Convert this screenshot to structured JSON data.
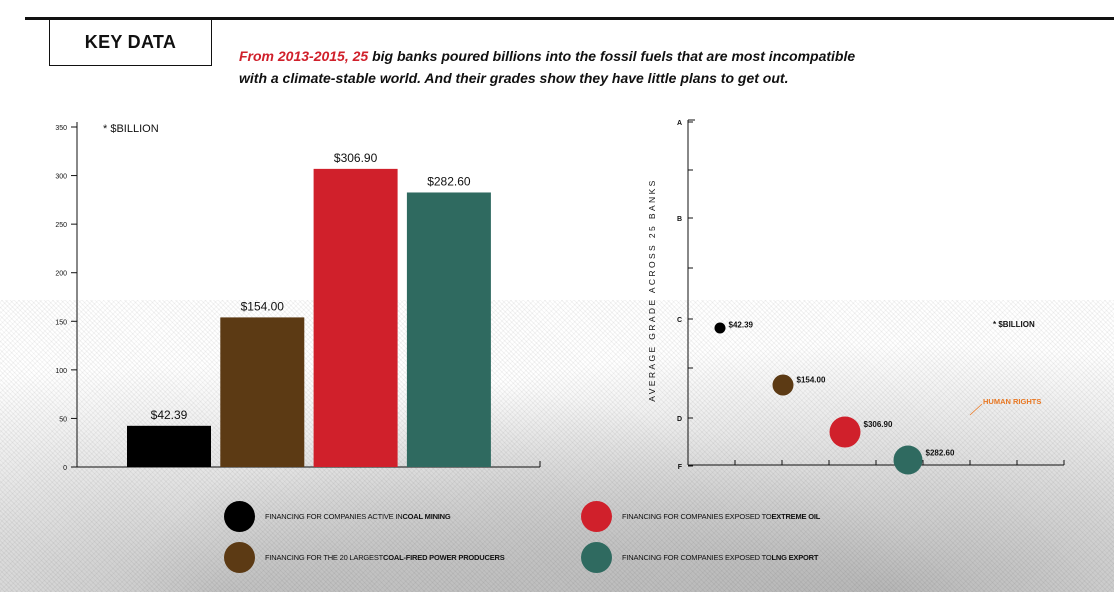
{
  "header": {
    "key_label": "KEY DATA",
    "headline_highlight": "From 2013-2015, 25",
    "headline_rest_line1": " big banks poured billions into the fossil fuels that are most incompatible",
    "headline_line2": "with a climate-stable world.  And their grades show they have little plans to get out."
  },
  "colors": {
    "coal_mining": "#000000",
    "coal_power": "#5c3a14",
    "extreme_oil": "#d0202b",
    "lng_export": "#2f6a60",
    "accent_red": "#d0202b",
    "human_rights": "#e87722"
  },
  "chart_data": [
    {
      "type": "bar",
      "unit_note": "* $BILLION",
      "categories": [
        "Coal mining",
        "Coal-fired power",
        "Extreme oil",
        "LNG export"
      ],
      "values": [
        42.39,
        154.0,
        306.9,
        282.6
      ],
      "value_labels": [
        "$42.39",
        "$154.00",
        "$306.90",
        "$282.60"
      ],
      "colors": [
        "#000000",
        "#5c3a14",
        "#d0202b",
        "#2f6a60"
      ],
      "ylim": [
        0,
        350
      ],
      "yticks": [
        0,
        50,
        100,
        150,
        200,
        250,
        300,
        350
      ],
      "grid": false
    },
    {
      "type": "scatter",
      "ylabel": "AVERAGE GRADE ACROSS 25 BANKS",
      "unit_note": "* $BILLION",
      "y_tick_labels": [
        "A",
        "B",
        "C",
        "D",
        "F"
      ],
      "annotation": "HUMAN RIGHTS",
      "points": [
        {
          "label": "$42.39",
          "value": 42.39,
          "grade": "C",
          "color": "#000000"
        },
        {
          "label": "$154.00",
          "value": 154.0,
          "grade": "C-/D+",
          "color": "#5c3a14"
        },
        {
          "label": "$306.90",
          "value": 306.9,
          "grade": "D-",
          "color": "#d0202b"
        },
        {
          "label": "$282.60",
          "value": 282.6,
          "grade": "D-/F",
          "color": "#2f6a60"
        }
      ]
    }
  ],
  "legend": [
    {
      "prefix": "FINANCING FOR COMPANIES ACTIVE IN ",
      "bold": "COAL MINING",
      "color": "#000000"
    },
    {
      "prefix": "FINANCING FOR COMPANIES EXPOSED TO ",
      "bold": "EXTREME OIL",
      "color": "#d0202b"
    },
    {
      "prefix": "FINANCING FOR THE 20 LARGEST ",
      "bold": "COAL-FIRED POWER PRODUCERS",
      "color": "#5c3a14"
    },
    {
      "prefix": "FINANCING FOR COMPANIES EXPOSED TO ",
      "bold": "LNG EXPORT",
      "color": "#2f6a60"
    }
  ]
}
